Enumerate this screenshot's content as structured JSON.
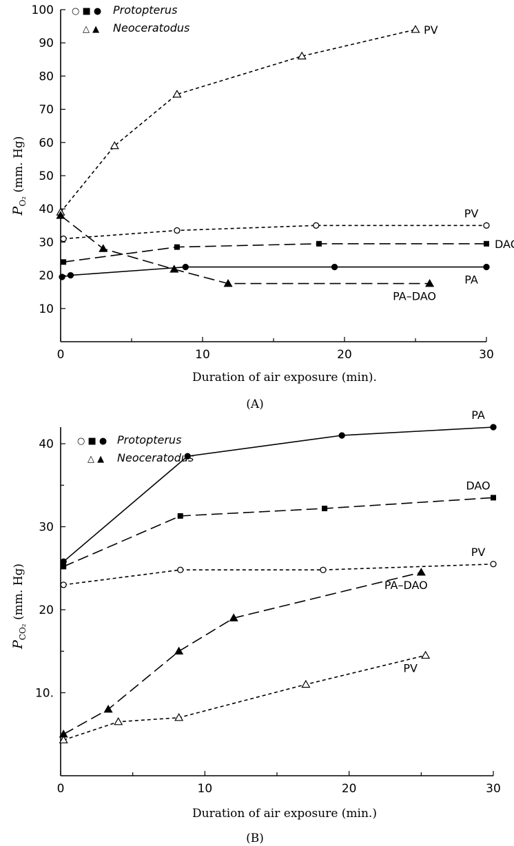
{
  "chart_data": [
    {
      "type": "line",
      "panel_label": "(A)",
      "xlabel": "Duration of air exposure (min).",
      "ylabel": "P",
      "ylabel_sub": "O₂",
      "ylabel_unit": " (mm. Hg)",
      "xlim": [
        0,
        30
      ],
      "ylim": [
        0,
        100
      ],
      "xticks": [
        0,
        10,
        20,
        30
      ],
      "yticks": [
        10,
        20,
        30,
        40,
        50,
        60,
        70,
        80,
        90,
        100
      ],
      "grid": false,
      "legend_position": "top-left",
      "legend": [
        {
          "symbols": "○ ■ ●",
          "label": "Protopterus"
        },
        {
          "symbols": "△ ▲",
          "label": "Neoceratodus"
        }
      ],
      "series": [
        {
          "name": "PV",
          "label_at": "end-right",
          "marker": "open-triangle",
          "line": "short-dash",
          "x": [
            0,
            3.8,
            8.2,
            17,
            25
          ],
          "y": [
            39,
            59,
            74.5,
            86,
            94
          ]
        },
        {
          "name": "PA–DAO",
          "label_at": "end-below",
          "marker": "filled-triangle",
          "line": "long-dash",
          "x": [
            0,
            3,
            8,
            11.8,
            26
          ],
          "y": [
            38,
            28,
            21.8,
            17.5,
            17.5
          ]
        },
        {
          "name": "PV",
          "label_at": "end-above",
          "marker": "open-circle",
          "line": "short-dash",
          "x": [
            0.2,
            8.2,
            18,
            30
          ],
          "y": [
            31,
            33.5,
            35,
            35
          ]
        },
        {
          "name": "DAO",
          "label_at": "end-right",
          "marker": "filled-square",
          "line": "long-dash",
          "x": [
            0.2,
            8.2,
            18.2,
            30
          ],
          "y": [
            24,
            28.5,
            29.5,
            29.5
          ]
        },
        {
          "name": "PA",
          "label_at": "end-below",
          "marker": "filled-circle",
          "line": "solid",
          "x": [
            0.1,
            0.7,
            8.8,
            19.3,
            30
          ],
          "y": [
            19.5,
            20,
            22.5,
            22.5,
            22.5
          ]
        }
      ]
    },
    {
      "type": "line",
      "panel_label": "(B)",
      "xlabel": "Duration of air exposure (min.)",
      "ylabel": "P",
      "ylabel_sub": "CO₂",
      "ylabel_unit": " (mm. Hg)",
      "xlim": [
        0,
        30
      ],
      "ylim": [
        0,
        42
      ],
      "xticks": [
        0,
        10,
        20,
        30
      ],
      "yticks": [
        10,
        20,
        30,
        40
      ],
      "ytick_labels": [
        "10.",
        "20",
        "30",
        "40"
      ],
      "grid": false,
      "legend_position": "top-left",
      "legend": [
        {
          "symbols": "○ ■ ●",
          "label": "Protopterus"
        },
        {
          "symbols": "△ ▲",
          "label": "Neoceratodus"
        }
      ],
      "series": [
        {
          "name": "PA",
          "label_at": "end-above",
          "marker": "filled-circle",
          "line": "solid",
          "x": [
            0.2,
            8.8,
            19.5,
            30
          ],
          "y": [
            25.8,
            38.5,
            41,
            42
          ]
        },
        {
          "name": "DAO",
          "label_at": "end-above",
          "marker": "filled-square",
          "line": "long-dash",
          "x": [
            0.2,
            8.3,
            18.3,
            30
          ],
          "y": [
            25.2,
            31.3,
            32.2,
            33.5
          ]
        },
        {
          "name": "PV",
          "label_at": "end-above",
          "marker": "open-circle",
          "line": "short-dash",
          "x": [
            0.2,
            8.3,
            18.2,
            30
          ],
          "y": [
            23,
            24.8,
            24.8,
            25.5
          ]
        },
        {
          "name": "PA–DAO",
          "label_at": "end-below",
          "marker": "filled-triangle",
          "line": "long-dash",
          "x": [
            0.2,
            3.3,
            8.2,
            12,
            25
          ],
          "y": [
            5,
            8,
            15,
            19,
            24.5
          ]
        },
        {
          "name": "PV",
          "label_at": "end-below",
          "marker": "open-triangle",
          "line": "short-dash",
          "x": [
            0.2,
            4,
            8.2,
            17,
            25.3
          ],
          "y": [
            4.3,
            6.5,
            7,
            11,
            14.5
          ]
        }
      ]
    }
  ]
}
